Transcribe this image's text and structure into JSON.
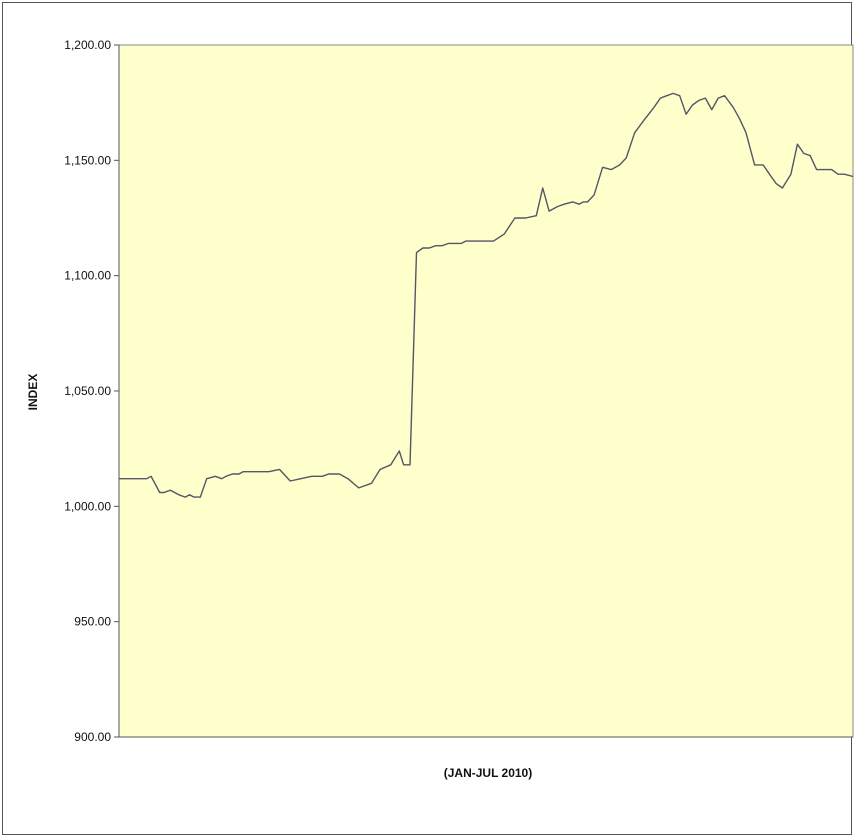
{
  "chart_data": {
    "type": "line",
    "title": "",
    "xlabel": "(JAN-JUL 2010)",
    "ylabel": "INDEX",
    "ylim": [
      900,
      1200
    ],
    "yticks": [
      900,
      950,
      1000,
      1050,
      1100,
      1150,
      1200
    ],
    "ytick_labels": [
      "900.00",
      "950.00",
      "1,000.00",
      "1,050.00",
      "1,100.00",
      "1,150.00",
      "1,200.00"
    ],
    "grid": false,
    "legend": "none",
    "plot_background": "#ffffcc",
    "line_color": "#555566",
    "x": [
      0,
      5,
      10,
      13,
      15,
      19,
      21,
      24,
      26,
      28,
      31,
      33,
      35,
      38,
      41,
      45,
      48,
      50,
      53,
      56,
      58,
      61,
      65,
      70,
      75,
      80,
      85,
      90,
      92,
      95,
      98,
      103,
      107,
      112,
      118,
      122,
      127,
      131,
      133,
      136,
      139,
      142,
      145,
      148,
      151,
      154,
      156,
      158,
      160,
      162,
      163,
      165,
      167,
      170,
      175,
      180,
      185,
      190,
      195,
      198,
      201,
      205,
      208,
      212,
      215,
      217,
      219,
      222,
      226,
      230,
      234,
      237,
      241,
      245,
      250,
      253,
      256,
      259,
      262,
      265,
      268,
      271,
      274,
      277,
      280,
      283,
      287,
      290,
      293,
      297,
      301,
      304,
      307,
      310,
      314,
      317,
      320,
      323,
      326,
      330,
      333,
      336,
      339,
      343
    ],
    "y": [
      1012,
      1012,
      1012,
      1012,
      1013,
      1006,
      1006,
      1007,
      1006,
      1005,
      1004,
      1005,
      1004,
      1004,
      1012,
      1013,
      1012,
      1013,
      1014,
      1014,
      1015,
      1015,
      1015,
      1015,
      1016,
      1011,
      1012,
      1013,
      1013,
      1013,
      1014,
      1014,
      1012,
      1008,
      1010,
      1016,
      1018,
      1024,
      1018,
      1018,
      1110,
      1112,
      1112,
      1113,
      1113,
      1114,
      1114,
      1114,
      1114,
      1115,
      1115,
      1115,
      1115,
      1115,
      1115,
      1118,
      1125,
      1125,
      1126,
      1138,
      1128,
      1130,
      1131,
      1132,
      1131,
      1132,
      1132,
      1135,
      1147,
      1146,
      1148,
      1151,
      1162,
      1167,
      1173,
      1177,
      1178,
      1179,
      1178,
      1170,
      1174,
      1176,
      1177,
      1172,
      1177,
      1178,
      1173,
      1168,
      1162,
      1148,
      1148,
      1144,
      1140,
      1138,
      1144,
      1157,
      1153,
      1152,
      1146,
      1146,
      1146,
      1144,
      1144,
      1143
    ]
  }
}
